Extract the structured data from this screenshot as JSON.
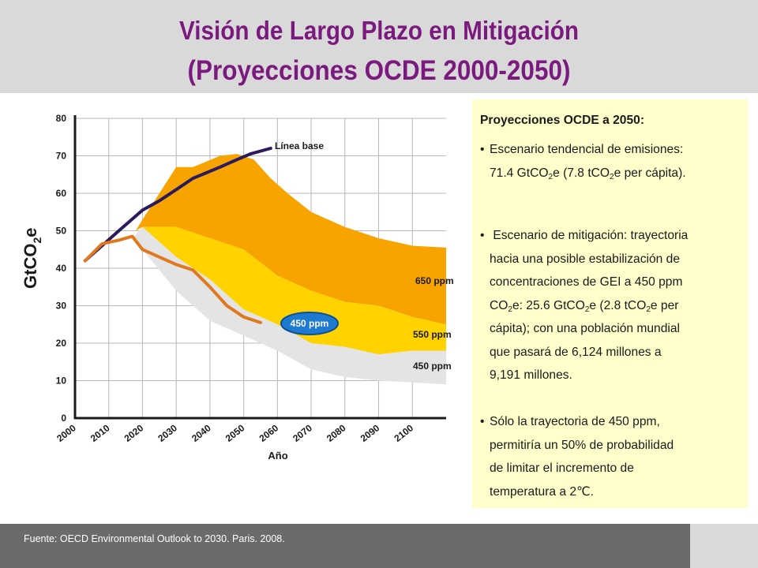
{
  "header": {
    "title_line1": "Visión de Largo Plazo en Mitigación",
    "title_line2": "(Proyecciones OCDE 2000-2050)"
  },
  "chart_data": {
    "type": "area",
    "ylabel_main": "GtCO",
    "ylabel_sub": "2",
    "ylabel_tail": "e",
    "xlabel": "Año",
    "xlim": [
      2000,
      2110
    ],
    "ylim": [
      0,
      80
    ],
    "y_ticks": [
      "0",
      "10",
      "20",
      "30",
      "40",
      "50",
      "60",
      "70",
      "80"
    ],
    "x_ticks": [
      "2000",
      "2010",
      "2020",
      "2030",
      "2040",
      "2050",
      "2060",
      "2070",
      "2080",
      "2090",
      "2100"
    ],
    "grid": true,
    "bands": [
      {
        "name": "650 ppm",
        "color": "#f7a400",
        "upper": [
          [
            2018,
            50
          ],
          [
            2020,
            53
          ],
          [
            2030,
            67
          ],
          [
            2035,
            67
          ],
          [
            2043,
            70
          ],
          [
            2048,
            70.5
          ],
          [
            2053,
            69
          ],
          [
            2058,
            64
          ],
          [
            2063,
            60
          ],
          [
            2070,
            55
          ],
          [
            2080,
            51
          ],
          [
            2090,
            48
          ],
          [
            2100,
            46
          ],
          [
            2110,
            45.5
          ]
        ],
        "lower": [
          [
            2110,
            25
          ],
          [
            2100,
            27
          ],
          [
            2090,
            30
          ],
          [
            2080,
            31
          ],
          [
            2070,
            34
          ],
          [
            2060,
            38
          ],
          [
            2050,
            45
          ],
          [
            2040,
            48
          ],
          [
            2030,
            51
          ],
          [
            2020,
            51
          ],
          [
            2018,
            50
          ]
        ]
      },
      {
        "name": "550 ppm",
        "color": "#ffd200",
        "upper": [
          [
            2020,
            51
          ],
          [
            2030,
            51
          ],
          [
            2040,
            48
          ],
          [
            2050,
            45
          ],
          [
            2060,
            38
          ],
          [
            2070,
            34
          ],
          [
            2080,
            31
          ],
          [
            2090,
            30
          ],
          [
            2100,
            27
          ],
          [
            2110,
            25
          ]
        ],
        "lower": [
          [
            2110,
            18
          ],
          [
            2100,
            18
          ],
          [
            2090,
            17
          ],
          [
            2080,
            19
          ],
          [
            2070,
            20
          ],
          [
            2060,
            25
          ],
          [
            2050,
            29
          ],
          [
            2040,
            37
          ],
          [
            2030,
            43
          ],
          [
            2020,
            51
          ]
        ]
      },
      {
        "name": "450 ppm",
        "color": "#e4e4e4",
        "upper": [
          [
            2020,
            51
          ],
          [
            2030,
            43
          ],
          [
            2040,
            37
          ],
          [
            2050,
            29
          ],
          [
            2060,
            25
          ],
          [
            2070,
            20
          ],
          [
            2080,
            19
          ],
          [
            2090,
            17
          ],
          [
            2100,
            18
          ],
          [
            2110,
            18
          ]
        ],
        "lower": [
          [
            2110,
            9
          ],
          [
            2100,
            9.5
          ],
          [
            2090,
            10
          ],
          [
            2080,
            11
          ],
          [
            2070,
            13
          ],
          [
            2060,
            18
          ],
          [
            2050,
            22
          ],
          [
            2040,
            26
          ],
          [
            2030,
            34
          ],
          [
            2020,
            45
          ],
          [
            2017,
            48
          ]
        ]
      }
    ],
    "series": [
      {
        "name": "Línea base",
        "color": "#2b1a5e",
        "points": [
          [
            2003,
            42
          ],
          [
            2008,
            46
          ],
          [
            2013,
            50
          ],
          [
            2020,
            55.5
          ],
          [
            2025,
            58
          ],
          [
            2030,
            61
          ],
          [
            2035,
            64
          ],
          [
            2043,
            67
          ],
          [
            2048,
            69
          ],
          [
            2052,
            70.5
          ],
          [
            2058,
            72
          ]
        ]
      },
      {
        "name": "450 ppm",
        "color": "#e07820",
        "points": [
          [
            2003,
            42
          ],
          [
            2008,
            46.5
          ],
          [
            2013,
            47.5
          ],
          [
            2017,
            48.5
          ],
          [
            2020,
            45
          ],
          [
            2030,
            41
          ],
          [
            2035,
            39.5
          ],
          [
            2040,
            35
          ],
          [
            2045,
            30
          ],
          [
            2050,
            27
          ],
          [
            2055,
            25.5
          ]
        ]
      }
    ],
    "labels": {
      "baseline": "Línea base",
      "ppm650": "650 ppm",
      "ppm550": "550 ppm",
      "ppm450": "450 ppm",
      "ppm450_badge": "450 ppm"
    }
  },
  "panel": {
    "heading": "Proyecciones OCDE a 2050:",
    "bullets": [
      {
        "mark": "•",
        "lines": [
          [
            "Escenario tendencial de emisiones:"
          ],
          [
            "71.4 GtCO",
            "2",
            "e  (7.8 tCO",
            "2",
            "e per cápita)."
          ]
        ]
      },
      {
        "mark": "•",
        "lines": [
          [
            " Escenario de mitigación: trayectoria"
          ],
          [
            "hacia una posible estabilización de"
          ],
          [
            "concentraciones de GEI a 450 ppm"
          ],
          [
            "CO",
            "2",
            "e: 25.6 GtCO",
            "2",
            "e  (2.8 tCO",
            "2",
            "e per"
          ],
          [
            "cápita); con una población mundial"
          ],
          [
            "que pasará de 6,124 millones a"
          ],
          [
            "9,191 millones."
          ]
        ]
      },
      {
        "mark": "•",
        "lines": [
          [
            "Sólo la trayectoria de 450 ppm,"
          ],
          [
            "permitiría un 50% de probabilidad"
          ],
          [
            "de limitar el incremento de"
          ],
          [
            "temperatura  a 2℃."
          ]
        ]
      }
    ]
  },
  "footer": {
    "source": "Fuente: OECD Environmental Outlook to 2030. Paris. 2008."
  }
}
